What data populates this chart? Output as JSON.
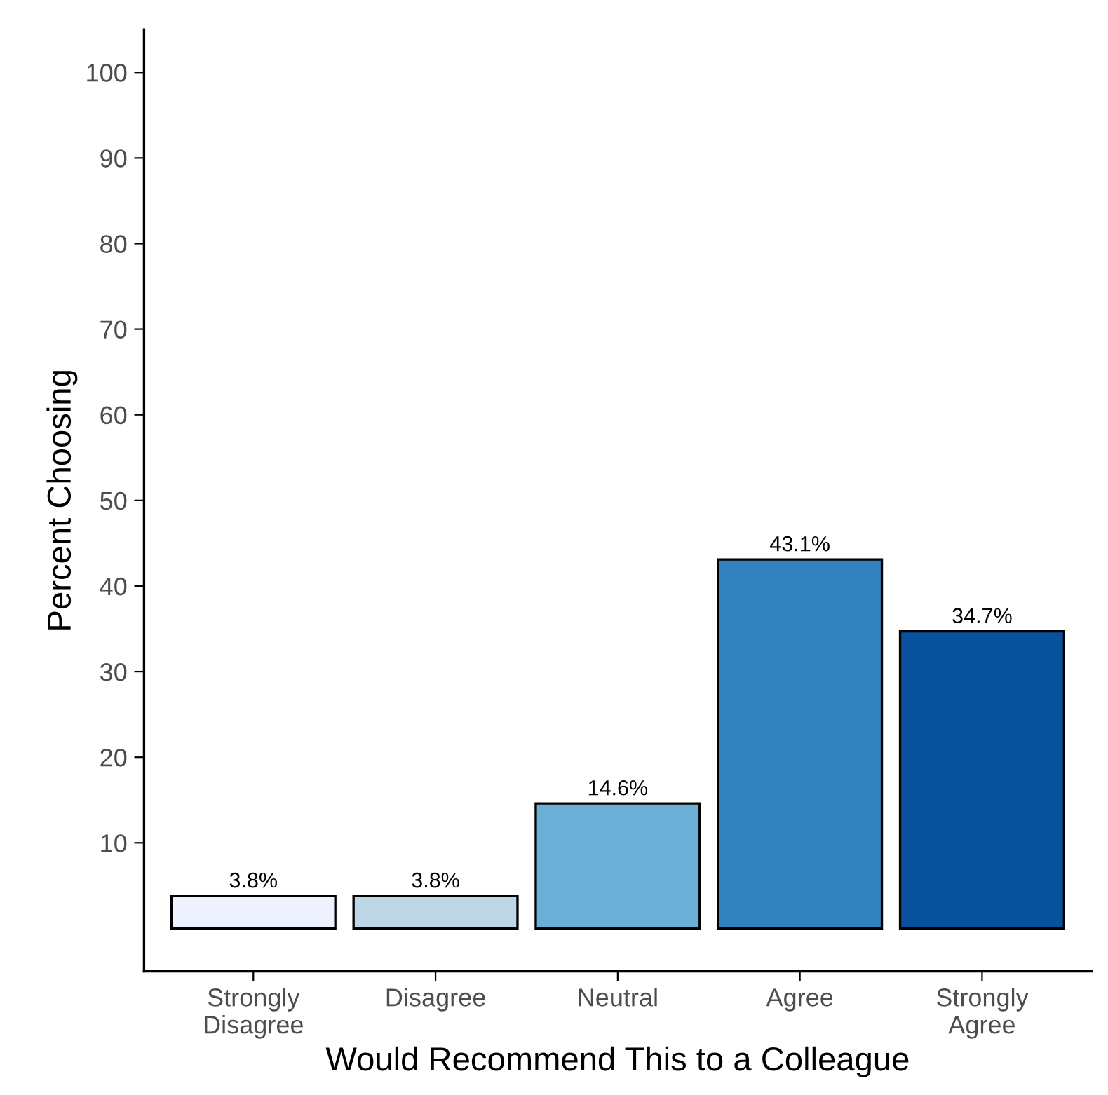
{
  "chart_data": {
    "type": "bar",
    "xlabel": "Would Recommend This to a Colleague",
    "ylabel": "Percent Choosing",
    "categories": [
      "Strongly\nDisagree",
      "Disagree",
      "Neutral",
      "Agree",
      "Strongly\nAgree"
    ],
    "values": [
      3.8,
      3.8,
      14.6,
      43.1,
      34.7
    ],
    "colors": [
      "#eff3ff",
      "#bdd7e7",
      "#6baed6",
      "#3182bd",
      "#08519c"
    ],
    "value_labels": [
      "3.8%",
      "3.8%",
      "14.6%",
      "43.1%",
      "34.7%"
    ],
    "ylim": [
      -5,
      105
    ],
    "yticks": [
      10,
      20,
      30,
      40,
      50,
      60,
      70,
      80,
      90,
      100
    ],
    "grid": false,
    "legend": false
  }
}
